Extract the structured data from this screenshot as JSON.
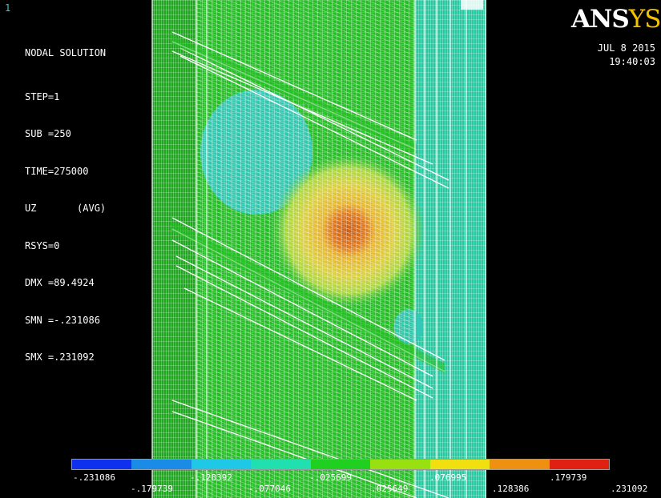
{
  "window_number": "1",
  "info": {
    "title": "NODAL SOLUTION",
    "step": "STEP=1",
    "sub": "SUB =250",
    "time": "TIME=275000",
    "quantity": "UZ       (AVG)",
    "rsys": "RSYS=0",
    "dmx": "DMX =89.4924",
    "smn": "SMN =-.231086",
    "smx": "SMX =.231092"
  },
  "logo": {
    "an": "ANS",
    "ys": "YS"
  },
  "date": "JUL  8 2015",
  "time_of_day": "19:40:03",
  "legend": {
    "colors": [
      "#1030f0",
      "#1a8ce8",
      "#20c8e8",
      "#20e0b0",
      "#20d020",
      "#98e010",
      "#f0e010",
      "#f09010",
      "#e02010"
    ],
    "labels": [
      "-.231086",
      "-.179739",
      "-.128392",
      "-.077046",
      "-.025699",
      ".025649",
      ".076995",
      ".128386",
      ".179739",
      ".231092"
    ]
  },
  "colors": {
    "background": "#000000",
    "mesh": "#20c020",
    "mesh_lines": "#ffffff",
    "logo_accent": "#f2c200"
  }
}
